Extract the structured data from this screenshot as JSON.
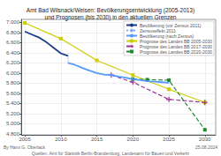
{
  "chart_data": {
    "type": "line",
    "title": "Amt Bad Wilsnack/Weisen: Bevölkerungsentwicklung (2005-2013)\nund Prognosen (bis 2030) in den aktuellen Grenzen",
    "annotations": [
      "By Hans G. Oberlack",
      "25.08.2024",
      "Quellen: Amt für Statistik Berlin-Brandenburg, Landesamt für Bauen und Verkehr"
    ],
    "xlim": [
      2004.5,
      2031.5
    ],
    "xticks": [
      2005,
      2010,
      2015,
      2020,
      2025,
      2030
    ],
    "ylim": [
      4780,
      7060
    ],
    "yticks": [
      {
        "value": 4800,
        "label": "4.800"
      },
      {
        "value": 5000,
        "label": "5.000"
      },
      {
        "value": 5200,
        "label": "5.200"
      },
      {
        "value": 5400,
        "label": "5.400"
      },
      {
        "value": 5600,
        "label": "5.600"
      },
      {
        "value": 5800,
        "label": "5.800"
      },
      {
        "value": 6000,
        "label": "6.000"
      },
      {
        "value": 6200,
        "label": "6.200"
      },
      {
        "value": 6400,
        "label": "6.400"
      },
      {
        "value": 6600,
        "label": "6.600"
      },
      {
        "value": 6800,
        "label": "6.800"
      },
      {
        "value": 7000,
        "label": "7.000"
      }
    ],
    "grid": true,
    "legend": "upper right",
    "series": [
      {
        "name": "Bevölkerung (vor Zensus 2011)",
        "color": "#1a3a8a",
        "line_style": "solid",
        "marker": "none",
        "x": [
          2005,
          2006,
          2007,
          2008,
          2009,
          2010,
          2011
        ],
        "values": [
          6820,
          6760,
          6700,
          6610,
          6500,
          6390,
          6340
        ]
      },
      {
        "name": "Zensuseffekt 2011",
        "color": "#88aaff",
        "line_style": "dotted",
        "marker": "none",
        "x": [
          2011,
          2011
        ],
        "values": [
          6340,
          6200
        ]
      },
      {
        "name": "Bevölkerung (nach Zensus)",
        "color": "#5599ff",
        "line_style": "solid",
        "marker": "none",
        "x": [
          2011,
          2012,
          2013,
          2014,
          2015,
          2016,
          2017,
          2018,
          2019,
          2020,
          2021,
          2022,
          2023,
          2024,
          2025
        ],
        "values": [
          6200,
          6160,
          6100,
          6050,
          6000,
          5970,
          5960,
          5930,
          5910,
          5880,
          5860,
          5840,
          5830,
          5820,
          5810
        ]
      },
      {
        "name": "Prognose des Landes BB 2005-2030",
        "color": "#cccc00",
        "line_style": "solid",
        "marker": "square",
        "x": [
          2005,
          2010,
          2015,
          2020,
          2025,
          2030
        ],
        "values": [
          6990,
          6680,
          6250,
          5960,
          5680,
          5420
        ]
      },
      {
        "name": "Prognose des Landes BB 2017-2030",
        "color": "#993399",
        "line_style": "dashed",
        "marker": "plus",
        "x": [
          2017,
          2020,
          2025,
          2030
        ],
        "values": [
          5960,
          5820,
          5480,
          5420
        ]
      },
      {
        "name": "Prognose des Landes BB 2020-2030",
        "color": "#228833",
        "line_style": "dashed",
        "marker": "square",
        "x": [
          2020,
          2022,
          2025,
          2030
        ],
        "values": [
          5880,
          5870,
          5860,
          4880
        ]
      }
    ]
  }
}
